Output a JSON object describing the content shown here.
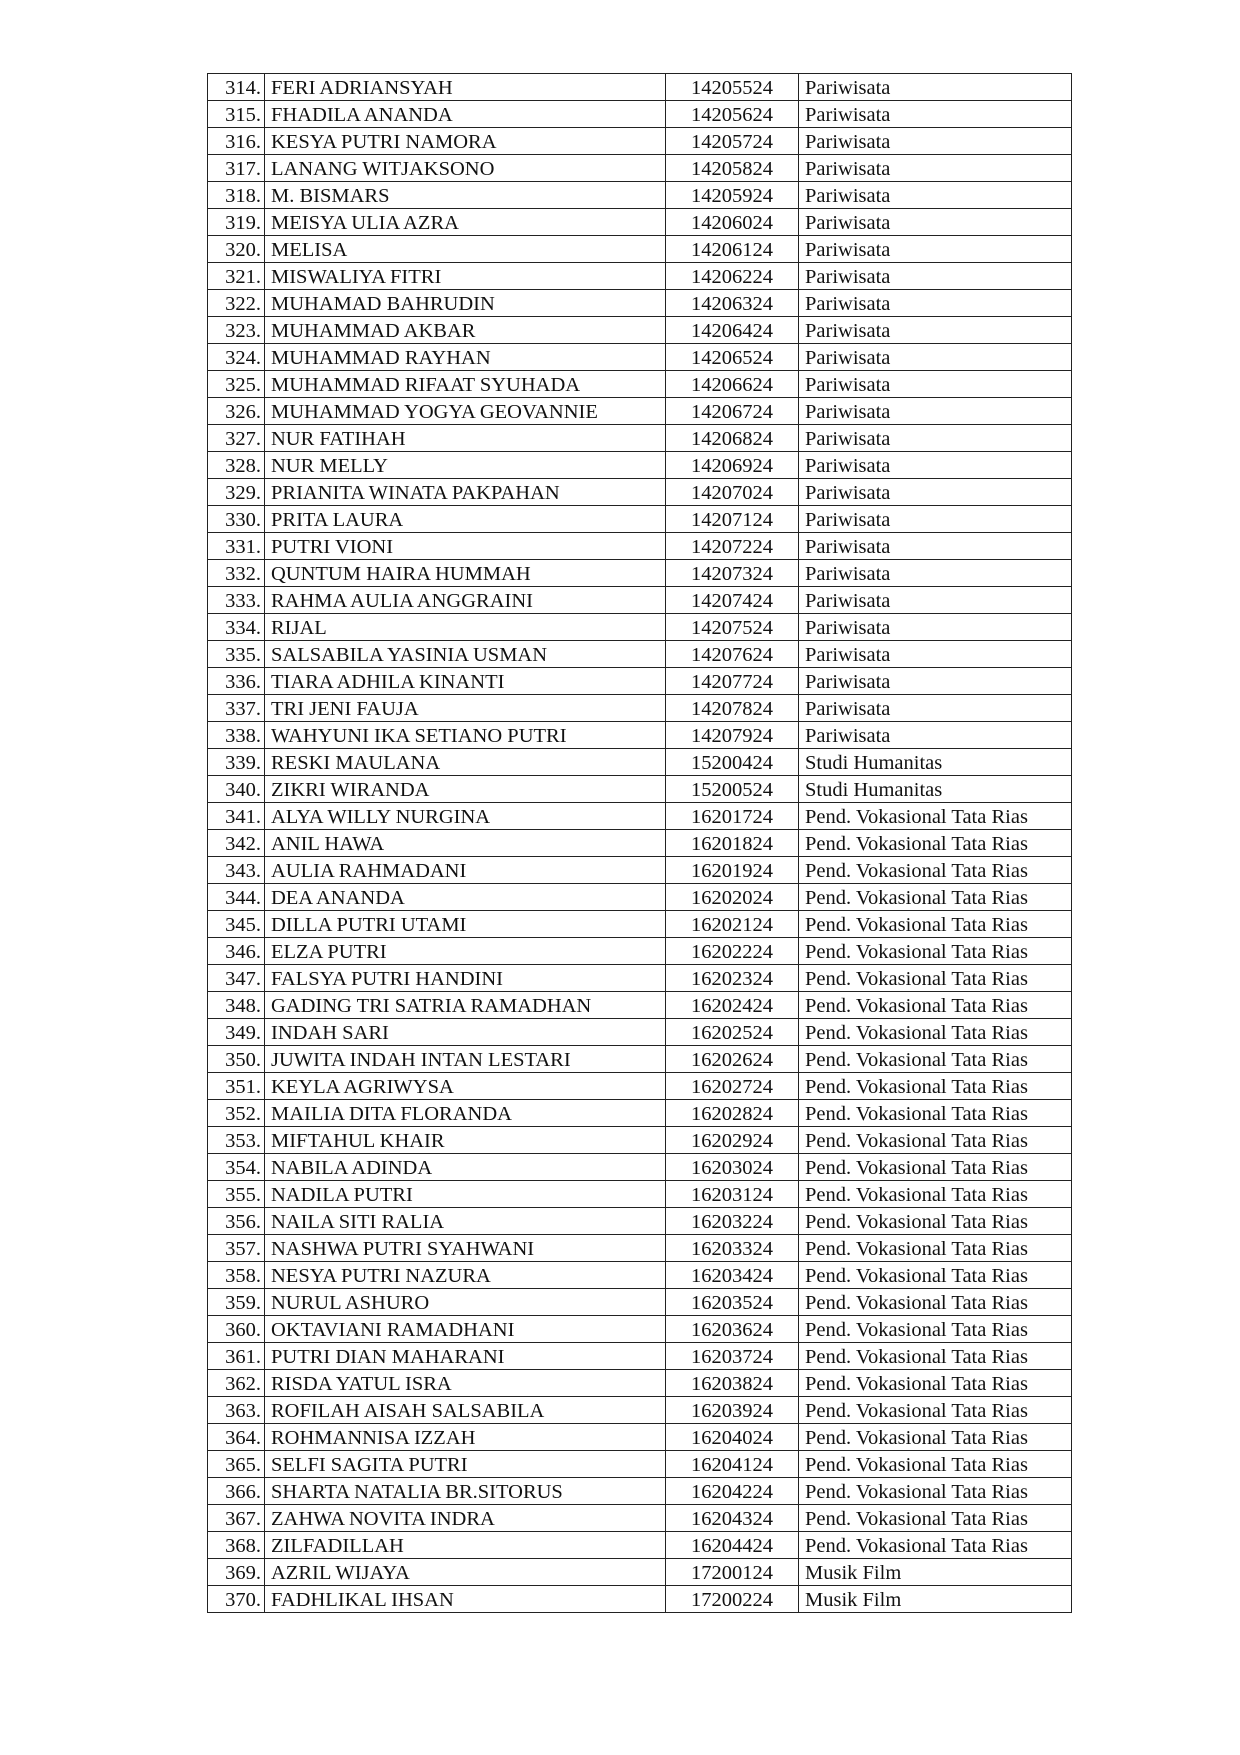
{
  "rows": [
    [
      "314.",
      "FERI ADRIANSYAH",
      "14205524",
      "Pariwisata"
    ],
    [
      "315.",
      "FHADILA ANANDA",
      "14205624",
      "Pariwisata"
    ],
    [
      "316.",
      "KESYA PUTRI NAMORA",
      "14205724",
      "Pariwisata"
    ],
    [
      "317.",
      "LANANG WITJAKSONO",
      "14205824",
      "Pariwisata"
    ],
    [
      "318.",
      "M. BISMARS",
      "14205924",
      "Pariwisata"
    ],
    [
      "319.",
      "MEISYA ULIA AZRA",
      "14206024",
      "Pariwisata"
    ],
    [
      "320.",
      "MELISA",
      "14206124",
      "Pariwisata"
    ],
    [
      "321.",
      "MISWALIYA FITRI",
      "14206224",
      "Pariwisata"
    ],
    [
      "322.",
      "MUHAMAD BAHRUDIN",
      "14206324",
      "Pariwisata"
    ],
    [
      "323.",
      "MUHAMMAD AKBAR",
      "14206424",
      "Pariwisata"
    ],
    [
      "324.",
      "MUHAMMAD RAYHAN",
      "14206524",
      "Pariwisata"
    ],
    [
      "325.",
      "MUHAMMAD RIFAAT SYUHADA",
      "14206624",
      "Pariwisata"
    ],
    [
      "326.",
      "MUHAMMAD YOGYA GEOVANNIE",
      "14206724",
      "Pariwisata"
    ],
    [
      "327.",
      "NUR FATIHAH",
      "14206824",
      "Pariwisata"
    ],
    [
      "328.",
      "NUR MELLY",
      "14206924",
      "Pariwisata"
    ],
    [
      "329.",
      "PRIANITA WINATA PAKPAHAN",
      "14207024",
      "Pariwisata"
    ],
    [
      "330.",
      "PRITA LAURA",
      "14207124",
      "Pariwisata"
    ],
    [
      "331.",
      "PUTRI VIONI",
      "14207224",
      "Pariwisata"
    ],
    [
      "332.",
      "QUNTUM HAIRA HUMMAH",
      "14207324",
      "Pariwisata"
    ],
    [
      "333.",
      "RAHMA AULIA ANGGRAINI",
      "14207424",
      "Pariwisata"
    ],
    [
      "334.",
      "RIJAL",
      "14207524",
      "Pariwisata"
    ],
    [
      "335.",
      "SALSABILA YASINIA USMAN",
      "14207624",
      "Pariwisata"
    ],
    [
      "336.",
      "TIARA ADHILA KINANTI",
      "14207724",
      "Pariwisata"
    ],
    [
      "337.",
      "TRI JENI FAUJA",
      "14207824",
      "Pariwisata"
    ],
    [
      "338.",
      "WAHYUNI IKA SETIANO PUTRI",
      "14207924",
      "Pariwisata"
    ],
    [
      "339.",
      "RESKI MAULANA",
      "15200424",
      "Studi Humanitas"
    ],
    [
      "340.",
      "ZIKRI WIRANDA",
      "15200524",
      "Studi Humanitas"
    ],
    [
      "341.",
      "ALYA WILLY NURGINA",
      "16201724",
      "Pend. Vokasional Tata Rias"
    ],
    [
      "342.",
      "ANIL HAWA",
      "16201824",
      "Pend. Vokasional Tata Rias"
    ],
    [
      "343.",
      "AULIA RAHMADANI",
      "16201924",
      "Pend. Vokasional Tata Rias"
    ],
    [
      "344.",
      "DEA ANANDA",
      "16202024",
      "Pend. Vokasional Tata Rias"
    ],
    [
      "345.",
      "DILLA PUTRI UTAMI",
      "16202124",
      "Pend. Vokasional Tata Rias"
    ],
    [
      "346.",
      "ELZA PUTRI",
      "16202224",
      "Pend. Vokasional Tata Rias"
    ],
    [
      "347.",
      "FALSYA PUTRI HANDINI",
      "16202324",
      "Pend. Vokasional Tata Rias"
    ],
    [
      "348.",
      "GADING TRI SATRIA RAMADHAN",
      "16202424",
      "Pend. Vokasional Tata Rias"
    ],
    [
      "349.",
      "INDAH SARI",
      "16202524",
      "Pend. Vokasional Tata Rias"
    ],
    [
      "350.",
      "JUWITA INDAH INTAN LESTARI",
      "16202624",
      "Pend. Vokasional Tata Rias"
    ],
    [
      "351.",
      "KEYLA AGRIWYSA",
      "16202724",
      "Pend. Vokasional Tata Rias"
    ],
    [
      "352.",
      "MAILIA DITA FLORANDA",
      "16202824",
      "Pend. Vokasional Tata Rias"
    ],
    [
      "353.",
      "MIFTAHUL KHAIR",
      "16202924",
      "Pend. Vokasional Tata Rias"
    ],
    [
      "354.",
      "NABILA ADINDA",
      "16203024",
      "Pend. Vokasional Tata Rias"
    ],
    [
      "355.",
      "NADILA PUTRI",
      "16203124",
      "Pend. Vokasional Tata Rias"
    ],
    [
      "356.",
      "NAILA SITI RALIA",
      "16203224",
      "Pend. Vokasional Tata Rias"
    ],
    [
      "357.",
      "NASHWA PUTRI SYAHWANI",
      "16203324",
      "Pend. Vokasional Tata Rias"
    ],
    [
      "358.",
      "NESYA PUTRI NAZURA",
      "16203424",
      "Pend. Vokasional Tata Rias"
    ],
    [
      "359.",
      "NURUL ASHURO",
      "16203524",
      "Pend. Vokasional Tata Rias"
    ],
    [
      "360.",
      "OKTAVIANI RAMADHANI",
      "16203624",
      "Pend. Vokasional Tata Rias"
    ],
    [
      "361.",
      "PUTRI DIAN MAHARANI",
      "16203724",
      "Pend. Vokasional Tata Rias"
    ],
    [
      "362.",
      "RISDA YATUL ISRA",
      "16203824",
      "Pend. Vokasional Tata Rias"
    ],
    [
      "363.",
      "ROFILAH AISAH SALSABILA",
      "16203924",
      "Pend. Vokasional Tata Rias"
    ],
    [
      "364.",
      "ROHMANNISA IZZAH",
      "16204024",
      "Pend. Vokasional Tata Rias"
    ],
    [
      "365.",
      "SELFI SAGITA PUTRI",
      "16204124",
      "Pend. Vokasional Tata Rias"
    ],
    [
      "366.",
      "SHARTA NATALIA BR.SITORUS",
      "16204224",
      "Pend. Vokasional Tata Rias"
    ],
    [
      "367.",
      "ZAHWA NOVITA INDRA",
      "16204324",
      "Pend. Vokasional Tata Rias"
    ],
    [
      "368.",
      "ZILFADILLAH",
      "16204424",
      "Pend. Vokasional Tata Rias"
    ],
    [
      "369.",
      "AZRIL WIJAYA",
      "17200124",
      "Musik Film"
    ],
    [
      "370.",
      "FADHLIKAL IHSAN",
      "17200224",
      "Musik Film"
    ]
  ]
}
